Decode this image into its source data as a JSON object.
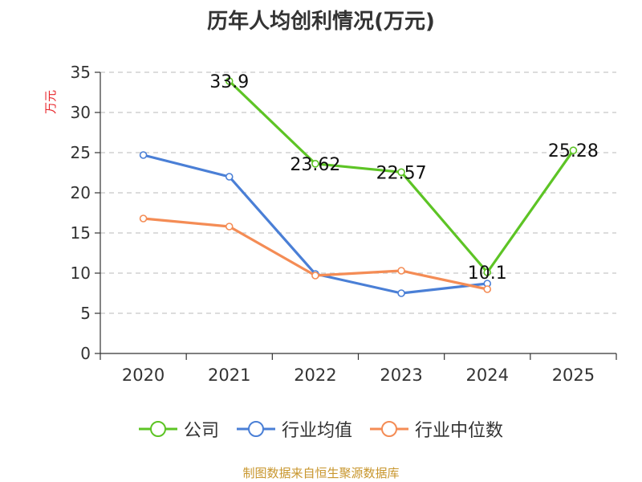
{
  "chart_data": {
    "type": "line",
    "title": "历年人均创利情况(万元)",
    "ylabel": "万元",
    "xlabel": "",
    "categories": [
      "2020",
      "2021",
      "2022",
      "2023",
      "2024",
      "2025"
    ],
    "ylim": [
      0,
      35
    ],
    "yticks": [
      0,
      5,
      10,
      15,
      20,
      25,
      30,
      35
    ],
    "grid": "horizontal dashed",
    "legend_position": "bottom",
    "series": [
      {
        "name": "公司",
        "color": "#5dc425",
        "values": [
          null,
          33.9,
          23.62,
          22.57,
          10.1,
          25.28
        ],
        "labels": [
          "",
          "33.9",
          "23.62",
          "22.57",
          "10.1",
          "25.28"
        ]
      },
      {
        "name": "行业均值",
        "color": "#4a7fd6",
        "values": [
          24.7,
          22.0,
          9.9,
          7.5,
          8.7,
          null
        ],
        "labels": []
      },
      {
        "name": "行业中位数",
        "color": "#f48c55",
        "values": [
          16.8,
          15.8,
          9.7,
          10.3,
          8.0,
          null
        ],
        "labels": []
      }
    ]
  },
  "footer": {
    "source": "制图数据来自恒生聚源数据库"
  }
}
